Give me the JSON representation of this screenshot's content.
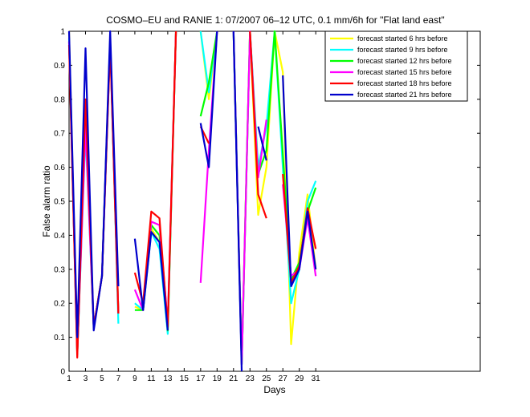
{
  "chart_data": {
    "type": "line",
    "title": "COSMO–EU and RANIE 1: 07/2007 06–12 UTC, 0.1 mm/6h for \"Flat land east\"",
    "xlabel": "Days",
    "ylabel": "False alarm ratio",
    "xlim": [
      1,
      51
    ],
    "ylim": [
      0,
      1
    ],
    "x_ticks": [
      1,
      3,
      5,
      7,
      9,
      11,
      13,
      15,
      17,
      19,
      21,
      23,
      25,
      27,
      29,
      31
    ],
    "y_ticks": [
      0,
      0.1,
      0.2,
      0.3,
      0.4,
      0.5,
      0.6,
      0.7,
      0.8,
      0.9,
      1
    ],
    "grid": false,
    "legend_position": "top-right",
    "series": [
      {
        "name": "forecast started 6 hrs before",
        "color": "#ffff00",
        "points": [
          [
            1,
            1
          ],
          [
            2,
            0.05
          ],
          [
            3,
            0.72
          ],
          [
            4,
            0.13
          ],
          [
            5,
            0.28
          ],
          [
            6,
            0.98
          ],
          [
            7,
            0.17
          ],
          [
            null,
            null
          ],
          [
            9,
            0.19
          ],
          [
            10,
            0.18
          ],
          [
            11,
            0.42
          ],
          [
            12,
            0.38
          ],
          [
            13,
            0.12
          ],
          [
            14,
            1
          ],
          [
            null,
            null
          ],
          [
            17,
            1
          ],
          [
            18,
            0.8
          ],
          [
            19,
            1
          ],
          [
            null,
            null
          ],
          [
            21,
            1
          ],
          [
            22,
            0.03
          ],
          [
            23,
            1
          ],
          [
            24,
            0.46
          ],
          [
            25,
            0.6
          ],
          [
            26,
            1
          ],
          [
            27,
            0.88
          ],
          [
            28,
            0.08
          ],
          [
            29,
            0.35
          ],
          [
            30,
            0.52
          ],
          [
            31,
            0.3
          ]
        ]
      },
      {
        "name": "forecast started 9 hrs before",
        "color": "#00ffff",
        "points": [
          [
            1,
            0.98
          ],
          [
            2,
            0.05
          ],
          [
            3,
            0.7
          ],
          [
            4,
            0.13
          ],
          [
            5,
            0.28
          ],
          [
            6,
            0.98
          ],
          [
            7,
            0.14
          ],
          [
            null,
            null
          ],
          [
            9,
            0.2
          ],
          [
            10,
            0.18
          ],
          [
            11,
            0.41
          ],
          [
            12,
            0.36
          ],
          [
            13,
            0.11
          ],
          [
            14,
            1
          ],
          [
            null,
            null
          ],
          [
            17,
            1
          ],
          [
            18,
            0.82
          ],
          [
            19,
            1
          ],
          [
            null,
            null
          ],
          [
            21,
            1
          ],
          [
            22,
            0.02
          ],
          [
            23,
            1
          ],
          [
            24,
            0.6
          ],
          [
            25,
            0.72
          ],
          [
            26,
            1
          ],
          [
            27,
            0.6
          ],
          [
            28,
            0.2
          ],
          [
            29,
            0.3
          ],
          [
            30,
            0.5
          ],
          [
            31,
            0.56
          ]
        ]
      },
      {
        "name": "forecast started 12 hrs before",
        "color": "#00ff00",
        "points": [
          [
            1,
            0.97
          ],
          [
            2,
            0.05
          ],
          [
            3,
            0.75
          ],
          [
            4,
            0.13
          ],
          [
            5,
            0.28
          ],
          [
            6,
            0.97
          ],
          [
            7,
            0.17
          ],
          [
            null,
            null
          ],
          [
            9,
            0.18
          ],
          [
            10,
            0.18
          ],
          [
            11,
            0.43
          ],
          [
            12,
            0.4
          ],
          [
            13,
            0.12
          ],
          [
            14,
            1
          ],
          [
            null,
            null
          ],
          [
            17,
            0.75
          ],
          [
            18,
            0.85
          ],
          [
            19,
            1
          ],
          [
            null,
            null
          ],
          [
            21,
            1
          ],
          [
            22,
            0.02
          ],
          [
            23,
            1
          ],
          [
            24,
            0.58
          ],
          [
            25,
            0.65
          ],
          [
            26,
            1
          ],
          [
            27,
            0.64
          ],
          [
            28,
            0.27
          ],
          [
            29,
            0.32
          ],
          [
            30,
            0.47
          ],
          [
            31,
            0.54
          ]
        ]
      },
      {
        "name": "forecast started 15 hrs before",
        "color": "#ff00ff",
        "points": [
          [
            1,
            0.97
          ],
          [
            2,
            0.05
          ],
          [
            3,
            0.72
          ],
          [
            4,
            0.13
          ],
          [
            5,
            0.28
          ],
          [
            6,
            0.97
          ],
          [
            7,
            0.17
          ],
          [
            null,
            null
          ],
          [
            9,
            0.24
          ],
          [
            10,
            0.18
          ],
          [
            11,
            0.44
          ],
          [
            12,
            0.43
          ],
          [
            13,
            0.14
          ],
          [
            14,
            1
          ],
          [
            null,
            null
          ],
          [
            17,
            0.26
          ],
          [
            18,
            0.65
          ],
          [
            19,
            1
          ],
          [
            null,
            null
          ],
          [
            21,
            1
          ],
          [
            22,
            0.02
          ],
          [
            23,
            1
          ],
          [
            24,
            0.57
          ],
          [
            25,
            0.74
          ],
          [
            null,
            null
          ],
          [
            27,
            0.55
          ],
          [
            28,
            0.28
          ],
          [
            29,
            0.3
          ],
          [
            30,
            0.45
          ],
          [
            31,
            0.28
          ]
        ]
      },
      {
        "name": "forecast started 18 hrs before",
        "color": "#ff0000",
        "points": [
          [
            1,
            0.96
          ],
          [
            2,
            0.04
          ],
          [
            3,
            0.8
          ],
          [
            4,
            0.13
          ],
          [
            5,
            0.28
          ],
          [
            6,
            0.96
          ],
          [
            7,
            0.17
          ],
          [
            null,
            null
          ],
          [
            9,
            0.29
          ],
          [
            10,
            0.2
          ],
          [
            11,
            0.47
          ],
          [
            12,
            0.45
          ],
          [
            13,
            0.13
          ],
          [
            14,
            1
          ],
          [
            null,
            null
          ],
          [
            17,
            0.72
          ],
          [
            18,
            0.67
          ],
          [
            null,
            null
          ],
          [
            23,
            1
          ],
          [
            24,
            0.52
          ],
          [
            25,
            0.45
          ],
          [
            null,
            null
          ],
          [
            27,
            0.58
          ],
          [
            28,
            0.26
          ],
          [
            29,
            0.31
          ],
          [
            30,
            0.48
          ],
          [
            31,
            0.36
          ]
        ]
      },
      {
        "name": "forecast started 21 hrs before",
        "color": "#0000cc",
        "points": [
          [
            1,
            1
          ],
          [
            2,
            0.1
          ],
          [
            3,
            0.95
          ],
          [
            4,
            0.12
          ],
          [
            5,
            0.28
          ],
          [
            6,
            1
          ],
          [
            7,
            0.25
          ],
          [
            null,
            null
          ],
          [
            9,
            0.39
          ],
          [
            10,
            0.18
          ],
          [
            11,
            0.41
          ],
          [
            12,
            0.38
          ],
          [
            13,
            0.12
          ],
          [
            null,
            null
          ],
          [
            17,
            0.73
          ],
          [
            18,
            0.6
          ],
          [
            19,
            1
          ],
          [
            null,
            null
          ],
          [
            21,
            1
          ],
          [
            22,
            0
          ],
          [
            null,
            null
          ],
          [
            24,
            0.72
          ],
          [
            25,
            0.62
          ],
          [
            null,
            null
          ],
          [
            27,
            0.87
          ],
          [
            28,
            0.25
          ],
          [
            29,
            0.3
          ],
          [
            30,
            0.47
          ],
          [
            31,
            0.3
          ]
        ]
      }
    ]
  }
}
